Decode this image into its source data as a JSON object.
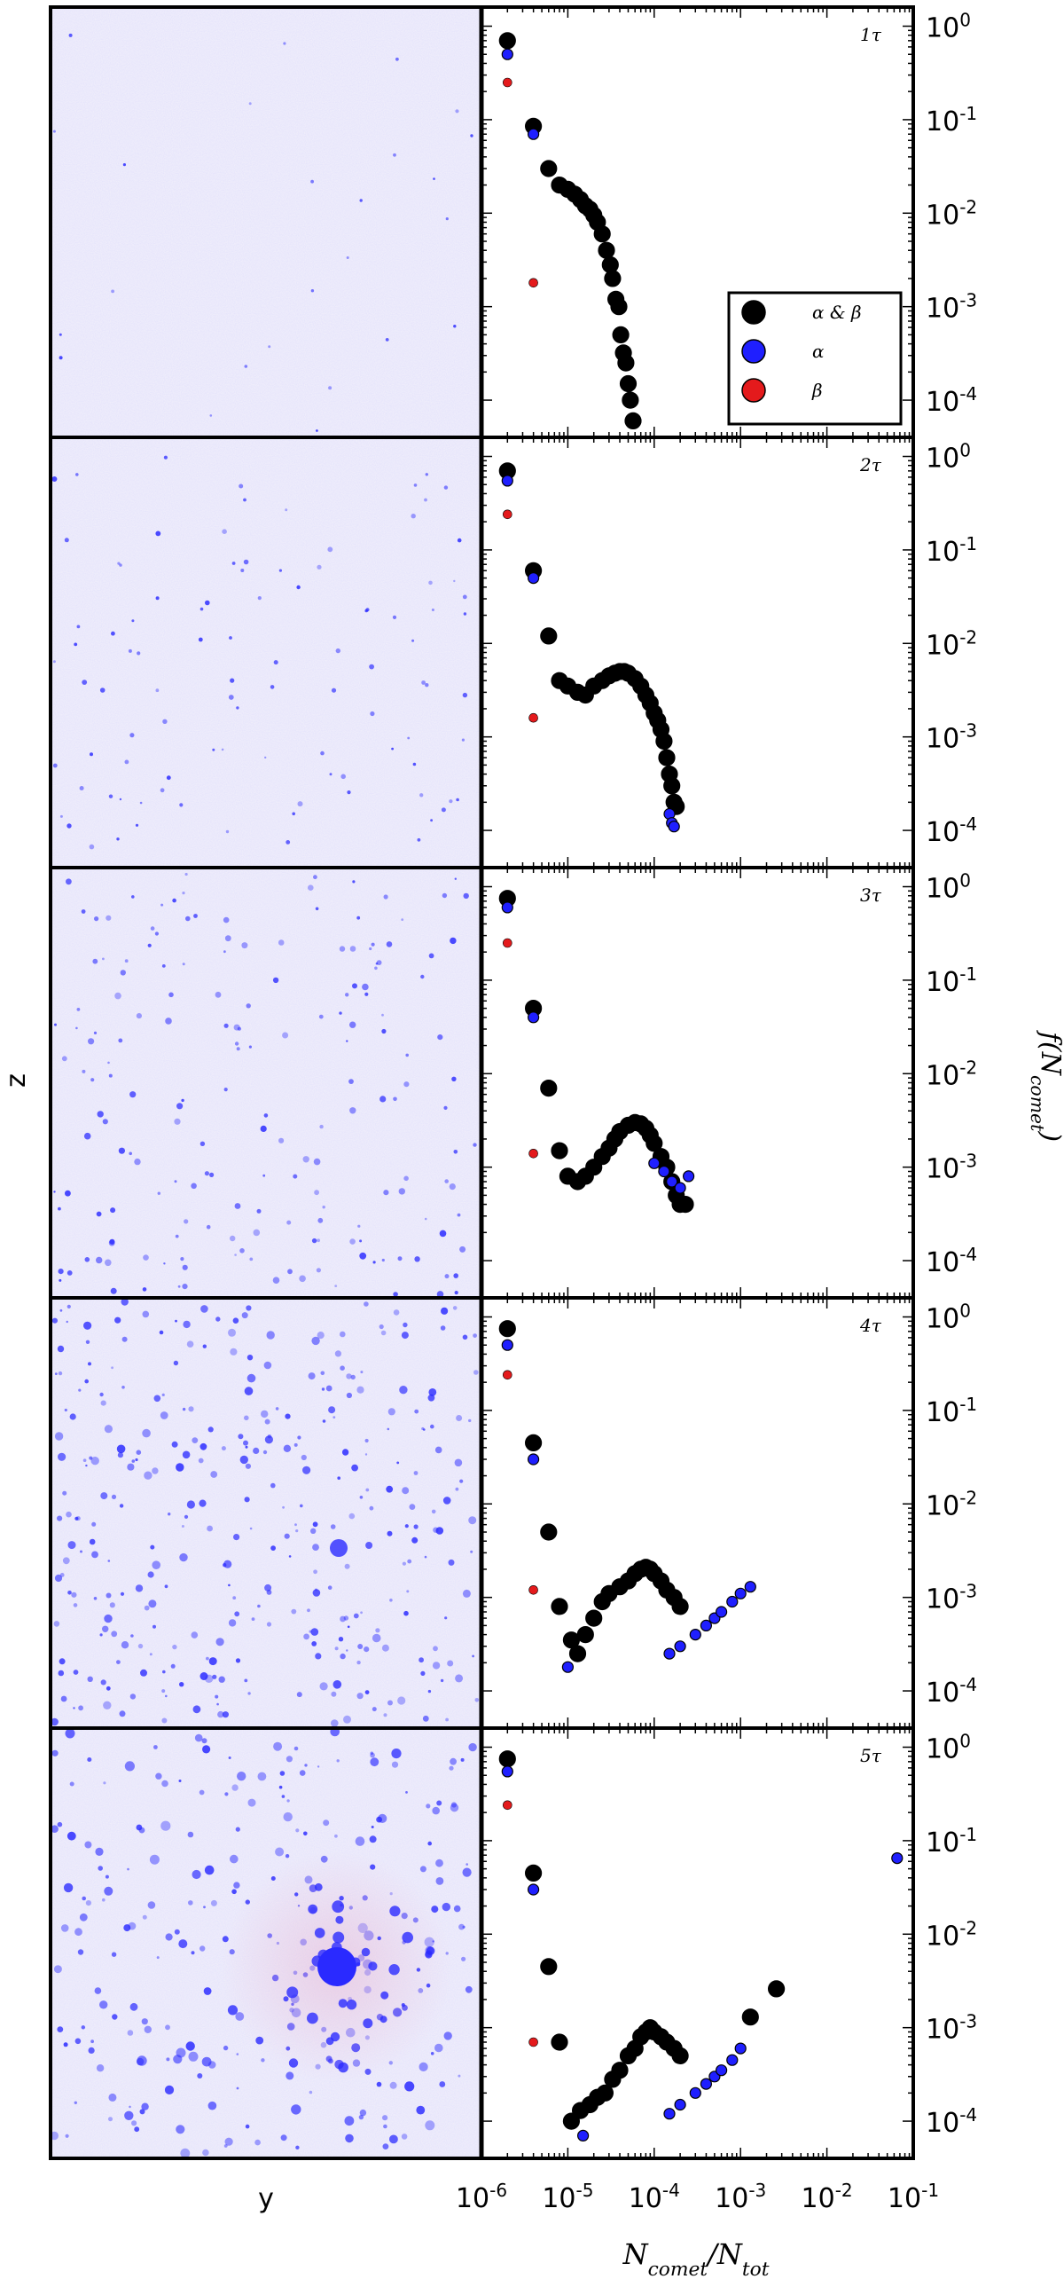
{
  "figure": {
    "left_xlabel": "y",
    "left_ylabel": "z",
    "right_ylabel": "f(N_comet)",
    "right_xlabel": "N_comet/N_tot"
  },
  "legend": {
    "entries": [
      {
        "label": "α & β",
        "color": "#000000",
        "marker": "large-circle"
      },
      {
        "label": "α",
        "color": "#1f1fff",
        "marker": "large-circle"
      },
      {
        "label": "β",
        "color": "#e41a1c",
        "marker": "large-circle"
      }
    ],
    "placement": "right, in first panel"
  },
  "colors": {
    "alpha_beta": "#000000",
    "alpha": "#1f1fff",
    "beta": "#e41a1c",
    "map_background": "#f3f1fa",
    "map_point": "#2a2aff"
  },
  "chart_data": [
    {
      "type": "scatter",
      "panel_label": "1τ",
      "x_axis_label": "N_comet/N_tot",
      "y_axis_label": "f(N_comet)",
      "x_scale": "log",
      "y_scale": "log",
      "xlim": [
        1e-06,
        0.1
      ],
      "ylim": [
        4e-05,
        1.6
      ],
      "x_tick_labels": [
        "10-6",
        "10-5",
        "10-4",
        "10-3",
        "10-2",
        "10-1"
      ],
      "y_tick_labels": [
        "100",
        "10-1",
        "10-2",
        "10-3",
        "10-4"
      ],
      "series": [
        {
          "name": "α & β",
          "x": [
            2e-06,
            4e-06,
            6e-06,
            8e-06,
            1e-05,
            1.2e-05,
            1.4e-05,
            1.6e-05,
            1.8e-05,
            2e-05,
            2.2e-05,
            2.5e-05,
            2.8e-05,
            3.1e-05,
            3.3e-05,
            3.6e-05,
            3.9e-05,
            4.1e-05,
            4.4e-05,
            4.7e-05,
            5e-05,
            5.3e-05,
            5.7e-05
          ],
          "y": [
            0.7,
            0.085,
            0.03,
            0.02,
            0.018,
            0.016,
            0.014,
            0.012,
            0.011,
            0.0095,
            0.008,
            0.006,
            0.004,
            0.0028,
            0.002,
            0.0012,
            0.001,
            0.0005,
            0.00032,
            0.00025,
            0.00015,
            0.0001,
            6e-05
          ]
        },
        {
          "name": "α",
          "x": [
            2e-06,
            4e-06
          ],
          "y": [
            0.5,
            0.07
          ]
        },
        {
          "name": "β",
          "x": [
            2e-06,
            4e-06
          ],
          "y": [
            0.25,
            0.0018
          ]
        }
      ]
    },
    {
      "type": "scatter",
      "panel_label": "2τ",
      "x_axis_label": "N_comet/N_tot",
      "y_axis_label": "f(N_comet)",
      "x_scale": "log",
      "y_scale": "log",
      "xlim": [
        1e-06,
        0.1
      ],
      "ylim": [
        4e-05,
        1.6
      ],
      "x_tick_labels": [
        "10-6",
        "10-5",
        "10-4",
        "10-3",
        "10-2",
        "10-1"
      ],
      "y_tick_labels": [
        "100",
        "10-1",
        "10-2",
        "10-3",
        "10-4"
      ],
      "series": [
        {
          "name": "α & β",
          "x": [
            2e-06,
            4e-06,
            6e-06,
            8e-06,
            1e-05,
            1.3e-05,
            1.6e-05,
            2e-05,
            2.5e-05,
            3e-05,
            3.5e-05,
            4e-05,
            4.5e-05,
            5e-05,
            6e-05,
            7e-05,
            8e-05,
            9e-05,
            0.0001,
            0.00011,
            0.00012,
            0.00013,
            0.00014,
            0.00015,
            0.00016,
            0.00017,
            0.00018
          ],
          "y": [
            0.7,
            0.06,
            0.012,
            0.004,
            0.0035,
            0.003,
            0.0028,
            0.0035,
            0.004,
            0.0045,
            0.0048,
            0.005,
            0.005,
            0.0048,
            0.0042,
            0.0035,
            0.0028,
            0.0023,
            0.0018,
            0.0015,
            0.0012,
            0.0009,
            0.0006,
            0.0004,
            0.0003,
            0.0002,
            0.00018
          ]
        },
        {
          "name": "α",
          "x": [
            2e-06,
            4e-06,
            0.00015,
            0.00016,
            0.00017
          ],
          "y": [
            0.55,
            0.05,
            0.00015,
            0.00012,
            0.00011
          ]
        },
        {
          "name": "β",
          "x": [
            2e-06,
            4e-06
          ],
          "y": [
            0.24,
            0.0016
          ]
        }
      ]
    },
    {
      "type": "scatter",
      "panel_label": "3τ",
      "x_axis_label": "N_comet/N_tot",
      "y_axis_label": "f(N_comet)",
      "x_scale": "log",
      "y_scale": "log",
      "xlim": [
        1e-06,
        0.1
      ],
      "ylim": [
        4e-05,
        1.6
      ],
      "x_tick_labels": [
        "10-6",
        "10-5",
        "10-4",
        "10-3",
        "10-2",
        "10-1"
      ],
      "y_tick_labels": [
        "100",
        "10-1",
        "10-2",
        "10-3",
        "10-4"
      ],
      "series": [
        {
          "name": "α & β",
          "x": [
            2e-06,
            4e-06,
            6e-06,
            8e-06,
            1e-05,
            1.3e-05,
            1.6e-05,
            2e-05,
            2.5e-05,
            3e-05,
            3.5e-05,
            4e-05,
            5e-05,
            6e-05,
            7e-05,
            8e-05,
            9e-05,
            0.0001,
            0.00012,
            0.00014,
            0.00016,
            0.00018,
            0.0002,
            0.00023
          ],
          "y": [
            0.75,
            0.05,
            0.007,
            0.0015,
            0.0008,
            0.0007,
            0.0008,
            0.001,
            0.0013,
            0.0016,
            0.002,
            0.0024,
            0.0028,
            0.003,
            0.0029,
            0.0026,
            0.0022,
            0.0018,
            0.0013,
            0.001,
            0.0007,
            0.0005,
            0.0004,
            0.0004
          ]
        },
        {
          "name": "α",
          "x": [
            2e-06,
            4e-06,
            0.0001,
            0.00013,
            0.00016,
            0.0002,
            0.00025
          ],
          "y": [
            0.6,
            0.04,
            0.0011,
            0.0009,
            0.0007,
            0.0006,
            0.0008
          ]
        },
        {
          "name": "β",
          "x": [
            2e-06,
            4e-06
          ],
          "y": [
            0.25,
            0.0014
          ]
        }
      ]
    },
    {
      "type": "scatter",
      "panel_label": "4τ",
      "x_axis_label": "N_comet/N_tot",
      "y_axis_label": "f(N_comet)",
      "x_scale": "log",
      "y_scale": "log",
      "xlim": [
        1e-06,
        0.1
      ],
      "ylim": [
        4e-05,
        1.6
      ],
      "x_tick_labels": [
        "10-6",
        "10-5",
        "10-4",
        "10-3",
        "10-2",
        "10-1"
      ],
      "y_tick_labels": [
        "100",
        "10-1",
        "10-2",
        "10-3",
        "10-4"
      ],
      "series": [
        {
          "name": "α & β",
          "x": [
            2e-06,
            4e-06,
            6e-06,
            8e-06,
            1.1e-05,
            1.3e-05,
            1.6e-05,
            2e-05,
            2.5e-05,
            3e-05,
            4e-05,
            5e-05,
            6e-05,
            7e-05,
            8e-05,
            9e-05,
            0.0001,
            0.00012,
            0.00014,
            0.00017,
            0.0002
          ],
          "y": [
            0.75,
            0.045,
            0.005,
            0.0008,
            0.00035,
            0.00025,
            0.0004,
            0.0006,
            0.0009,
            0.0011,
            0.0013,
            0.0015,
            0.0018,
            0.002,
            0.0021,
            0.002,
            0.0018,
            0.0015,
            0.0012,
            0.001,
            0.0008
          ]
        },
        {
          "name": "α",
          "x": [
            2e-06,
            4e-06,
            1e-05,
            0.00015,
            0.0002,
            0.0003,
            0.0004,
            0.0005,
            0.0006,
            0.0008,
            0.001,
            0.0013
          ],
          "y": [
            0.5,
            0.03,
            0.00018,
            0.00025,
            0.0003,
            0.0004,
            0.0005,
            0.0006,
            0.0007,
            0.0009,
            0.0011,
            0.0013
          ]
        },
        {
          "name": "β",
          "x": [
            2e-06,
            4e-06
          ],
          "y": [
            0.24,
            0.0012
          ]
        }
      ]
    },
    {
      "type": "scatter",
      "panel_label": "5τ",
      "x_axis_label": "N_comet/N_tot",
      "y_axis_label": "f(N_comet)",
      "x_scale": "log",
      "y_scale": "log",
      "xlim": [
        1e-06,
        0.1
      ],
      "ylim": [
        4e-05,
        1.6
      ],
      "x_tick_labels": [
        "10-6",
        "10-5",
        "10-4",
        "10-3",
        "10-2",
        "10-1"
      ],
      "y_tick_labels": [
        "100",
        "10-1",
        "10-2",
        "10-3",
        "10-4"
      ],
      "series": [
        {
          "name": "α & β",
          "x": [
            2e-06,
            4e-06,
            6e-06,
            8e-06,
            1.1e-05,
            1.4e-05,
            1.8e-05,
            2.2e-05,
            2.7e-05,
            3.3e-05,
            4e-05,
            5e-05,
            6e-05,
            7e-05,
            8e-05,
            9e-05,
            0.0001,
            0.00012,
            0.00014,
            0.00017,
            0.0002,
            0.0013,
            0.0026
          ],
          "y": [
            0.75,
            0.045,
            0.0045,
            0.0007,
            0.0001,
            0.00013,
            0.00015,
            0.00018,
            0.0002,
            0.00028,
            0.00035,
            0.0005,
            0.0006,
            0.0008,
            0.0009,
            0.001,
            0.0009,
            0.0008,
            0.0007,
            0.0006,
            0.0005,
            0.0013,
            0.0026
          ]
        },
        {
          "name": "α",
          "x": [
            2e-06,
            4e-06,
            1.5e-05,
            0.00015,
            0.0002,
            0.0003,
            0.0004,
            0.0005,
            0.0006,
            0.0008,
            0.001,
            0.065
          ],
          "y": [
            0.55,
            0.03,
            7e-05,
            0.00012,
            0.00015,
            0.0002,
            0.00025,
            0.0003,
            0.00035,
            0.00045,
            0.0006,
            0.065
          ]
        },
        {
          "name": "β",
          "x": [
            2e-06,
            4e-06
          ],
          "y": [
            0.24,
            0.0007
          ]
        }
      ]
    }
  ]
}
